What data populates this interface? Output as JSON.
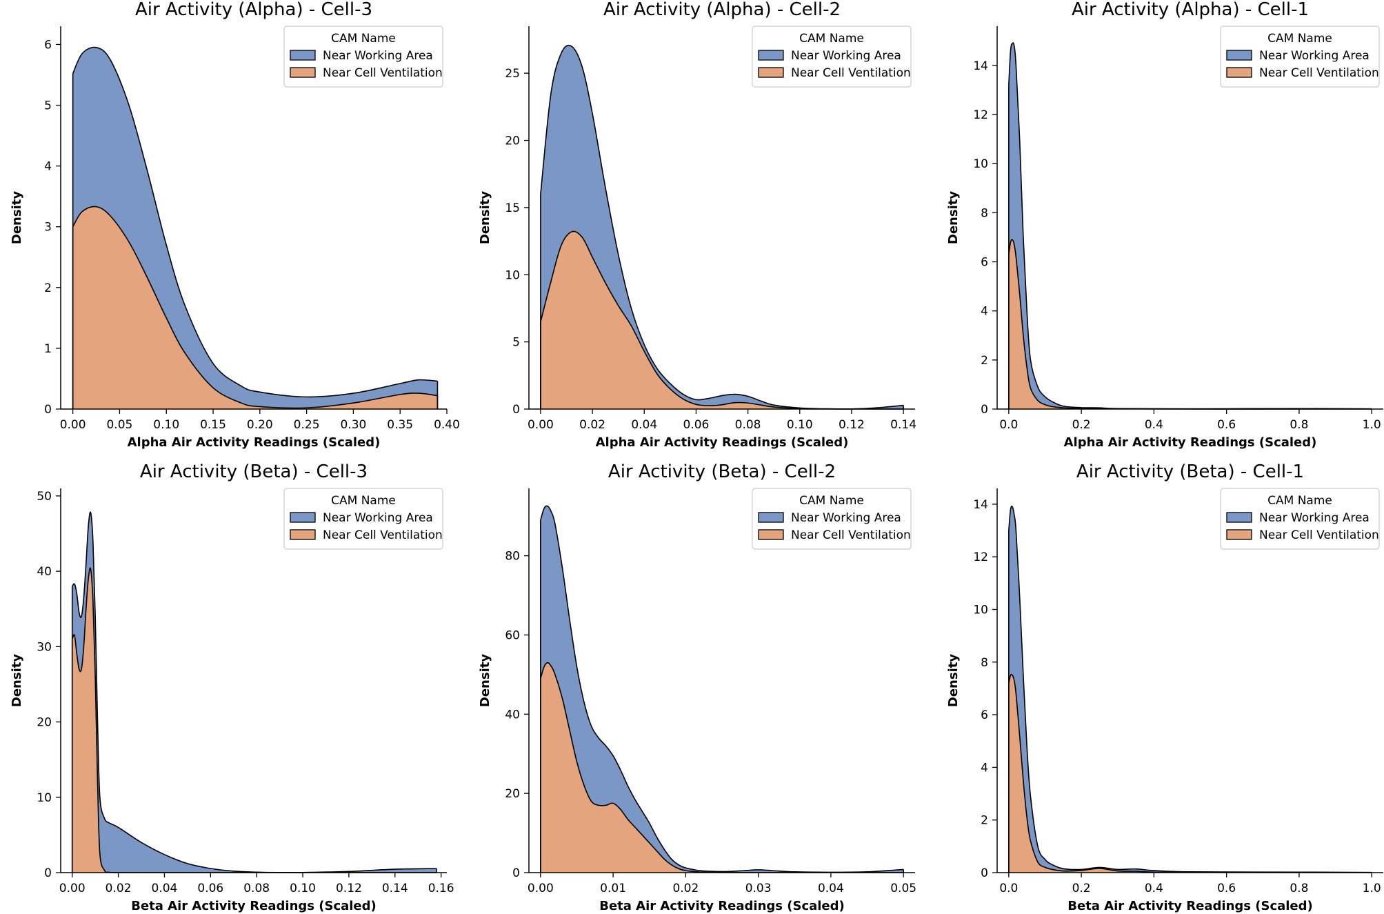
{
  "colors": {
    "near_working_area": "#7b97c5",
    "near_cell_ventilation": "#e4a47d",
    "edge": "#000000"
  },
  "chart_data": [
    {
      "type": "area",
      "title": "Air Activity (Alpha) - Cell-3",
      "xlabel": "Alpha Air Activity Readings (Scaled)",
      "ylabel": "Density",
      "xlim": [
        -0.013,
        0.4
      ],
      "ylim": [
        0,
        6.3
      ],
      "xticks": [
        "0.00",
        "0.05",
        "0.10",
        "0.15",
        "0.20",
        "0.25",
        "0.30",
        "0.35",
        "0.40"
      ],
      "yticks": [
        "0",
        "1",
        "2",
        "3",
        "4",
        "5",
        "6"
      ],
      "legend": {
        "title": "CAM Name",
        "entries": [
          "Near Working Area",
          "Near Cell Ventilation"
        ]
      },
      "series": [
        {
          "name": "Near Working Area",
          "x": [
            0,
            0.01,
            0.025,
            0.04,
            0.06,
            0.08,
            0.1,
            0.12,
            0.15,
            0.18,
            0.2,
            0.25,
            0.3,
            0.35,
            0.37,
            0.39
          ],
          "values": [
            5.52,
            5.85,
            5.95,
            5.75,
            5.0,
            3.9,
            2.7,
            1.7,
            0.75,
            0.38,
            0.28,
            0.2,
            0.26,
            0.42,
            0.48,
            0.46
          ]
        },
        {
          "name": "Near Cell Ventilation",
          "x": [
            0,
            0.01,
            0.025,
            0.04,
            0.06,
            0.08,
            0.1,
            0.12,
            0.15,
            0.18,
            0.2,
            0.25,
            0.3,
            0.35,
            0.37,
            0.39
          ],
          "values": [
            3.0,
            3.25,
            3.33,
            3.18,
            2.75,
            2.15,
            1.5,
            0.92,
            0.35,
            0.1,
            0.04,
            0.02,
            0.1,
            0.24,
            0.26,
            0.22
          ]
        }
      ]
    },
    {
      "type": "area",
      "title": "Air Activity (Alpha) - Cell-2",
      "xlabel": "Alpha Air Activity Readings (Scaled)",
      "ylabel": "Density",
      "xlim": [
        -0.0045,
        0.1445
      ],
      "ylim": [
        0,
        28.5
      ],
      "xticks": [
        "0.00",
        "0.02",
        "0.04",
        "0.06",
        "0.08",
        "0.10",
        "0.12",
        "0.14"
      ],
      "yticks": [
        "0",
        "5",
        "10",
        "15",
        "20",
        "25"
      ],
      "legend": {
        "title": "CAM Name",
        "entries": [
          "Near Working Area",
          "Near Cell Ventilation"
        ]
      },
      "series": [
        {
          "name": "Near Working Area",
          "x": [
            0,
            0.004,
            0.008,
            0.012,
            0.016,
            0.02,
            0.025,
            0.03,
            0.035,
            0.04,
            0.045,
            0.05,
            0.055,
            0.06,
            0.065,
            0.07,
            0.075,
            0.08,
            0.085,
            0.09,
            0.1,
            0.11,
            0.12,
            0.13,
            0.14
          ],
          "values": [
            16,
            23.5,
            26.5,
            27,
            25.5,
            22,
            16.5,
            11.5,
            7.5,
            4.8,
            3.0,
            1.9,
            1.1,
            0.7,
            0.8,
            1.0,
            1.1,
            0.95,
            0.6,
            0.3,
            0.08,
            0.02,
            0.01,
            0.1,
            0.28
          ]
        },
        {
          "name": "Near Cell Ventilation",
          "x": [
            0,
            0.004,
            0.008,
            0.012,
            0.016,
            0.02,
            0.025,
            0.03,
            0.035,
            0.04,
            0.045,
            0.05,
            0.055,
            0.06,
            0.065,
            0.07,
            0.075,
            0.08,
            0.085,
            0.09,
            0.1,
            0.11,
            0.12,
            0.13,
            0.14
          ],
          "values": [
            6.5,
            9.5,
            12.2,
            13.2,
            12.8,
            11.3,
            9.4,
            7.7,
            6.2,
            4.3,
            2.6,
            1.5,
            0.75,
            0.35,
            0.25,
            0.32,
            0.48,
            0.45,
            0.3,
            0.15,
            0.03,
            0.01,
            0,
            0,
            0
          ]
        }
      ]
    },
    {
      "type": "area",
      "title": "Air Activity (Alpha) - Cell-1",
      "xlabel": "Alpha Air Activity Readings (Scaled)",
      "ylabel": "Density",
      "xlim": [
        -0.032,
        1.032
      ],
      "ylim": [
        0,
        15.6
      ],
      "xticks": [
        "0.0",
        "0.2",
        "0.4",
        "0.6",
        "0.8",
        "1.0"
      ],
      "yticks": [
        "0",
        "2",
        "4",
        "6",
        "8",
        "10",
        "12",
        "14"
      ],
      "legend": {
        "title": "CAM Name",
        "entries": [
          "Near Working Area",
          "Near Cell Ventilation"
        ]
      },
      "series": [
        {
          "name": "Near Working Area",
          "x": [
            0,
            0.005,
            0.01,
            0.015,
            0.02,
            0.03,
            0.04,
            0.05,
            0.06,
            0.08,
            0.1,
            0.12,
            0.15,
            0.2,
            0.25,
            0.3,
            0.5,
            0.8,
            1.0
          ],
          "values": [
            13.2,
            14.6,
            14.9,
            14.8,
            14.0,
            11.0,
            7.0,
            4.0,
            2.0,
            0.9,
            0.5,
            0.3,
            0.12,
            0.06,
            0.05,
            0.02,
            0.01,
            0.02,
            0.01
          ]
        },
        {
          "name": "Near Cell Ventilation",
          "x": [
            0,
            0.005,
            0.01,
            0.015,
            0.02,
            0.03,
            0.04,
            0.05,
            0.06,
            0.08,
            0.1,
            0.12,
            0.15,
            0.2,
            0.25,
            0.3,
            0.5,
            0.8,
            1.0
          ],
          "values": [
            6.3,
            6.8,
            6.9,
            6.7,
            6.2,
            4.7,
            3.0,
            1.7,
            0.85,
            0.35,
            0.18,
            0.1,
            0.05,
            0.02,
            0.02,
            0.01,
            0,
            0,
            0
          ]
        }
      ]
    },
    {
      "type": "area",
      "title": "Air Activity (Beta) - Cell-3",
      "xlabel": "Beta Air Activity Readings (Scaled)",
      "ylabel": "Density",
      "xlim": [
        -0.005,
        0.1625
      ],
      "ylim": [
        0,
        51
      ],
      "xticks": [
        "0.00",
        "0.02",
        "0.04",
        "0.06",
        "0.08",
        "0.10",
        "0.12",
        "0.14",
        "0.16"
      ],
      "yticks": [
        "0",
        "10",
        "20",
        "30",
        "40",
        "50"
      ],
      "legend": {
        "title": "CAM Name",
        "entries": [
          "Near Working Area",
          "Near Cell Ventilation"
        ]
      },
      "series": [
        {
          "name": "Near Working Area",
          "x": [
            0,
            0.001,
            0.002,
            0.003,
            0.004,
            0.005,
            0.006,
            0.007,
            0.008,
            0.009,
            0.01,
            0.011,
            0.012,
            0.014,
            0.016,
            0.02,
            0.03,
            0.04,
            0.05,
            0.06,
            0.07,
            0.08,
            0.09,
            0.1,
            0.12,
            0.14,
            0.158
          ],
          "values": [
            38,
            38.3,
            37,
            34.5,
            34,
            36.5,
            41,
            46,
            47.8,
            44,
            34,
            20,
            10,
            7.2,
            6.6,
            6,
            4,
            2.4,
            1.2,
            0.55,
            0.2,
            0.06,
            0.02,
            0.02,
            0.15,
            0.45,
            0.55
          ]
        },
        {
          "name": "Near Cell Ventilation",
          "x": [
            0,
            0.001,
            0.002,
            0.003,
            0.004,
            0.005,
            0.006,
            0.007,
            0.008,
            0.009,
            0.01,
            0.011,
            0.012,
            0.014,
            0.016,
            0.02,
            0.03,
            0.04,
            0.05,
            0.06,
            0.07,
            0.08,
            0.09,
            0.1,
            0.12,
            0.14,
            0.158
          ],
          "values": [
            31,
            31.5,
            29,
            27,
            27,
            30,
            35,
            39,
            40.3,
            36,
            26,
            12,
            2.5,
            0.3,
            0.05,
            0,
            0,
            0,
            0,
            0,
            0,
            0,
            0,
            0,
            0,
            0,
            0
          ]
        }
      ]
    },
    {
      "type": "area",
      "title": "Air Activity (Beta) - Cell-2",
      "xlabel": "Beta Air Activity Readings (Scaled)",
      "ylabel": "Density",
      "xlim": [
        -0.0016,
        0.0516
      ],
      "ylim": [
        0,
        97
      ],
      "xticks": [
        "0.00",
        "0.01",
        "0.02",
        "0.03",
        "0.04",
        "0.05"
      ],
      "yticks": [
        "0",
        "20",
        "40",
        "60",
        "80"
      ],
      "legend": {
        "title": "CAM Name",
        "entries": [
          "Near Working Area",
          "Near Cell Ventilation"
        ]
      },
      "series": [
        {
          "name": "Near Working Area",
          "x": [
            0,
            0.0005,
            0.001,
            0.0015,
            0.002,
            0.003,
            0.004,
            0.005,
            0.006,
            0.007,
            0.008,
            0.009,
            0.01,
            0.011,
            0.012,
            0.013,
            0.014,
            0.015,
            0.016,
            0.017,
            0.018,
            0.019,
            0.02,
            0.022,
            0.024,
            0.026,
            0.028,
            0.03,
            0.032,
            0.035,
            0.04,
            0.045,
            0.05
          ],
          "values": [
            89,
            92,
            92.5,
            91,
            88,
            77,
            64,
            52,
            43,
            37,
            34,
            32,
            29.5,
            26,
            22,
            18.5,
            15.5,
            12.5,
            9,
            6,
            3.5,
            2,
            1.2,
            0.5,
            0.3,
            0.3,
            0.5,
            0.7,
            0.5,
            0.2,
            0.1,
            0.2,
            0.8
          ]
        },
        {
          "name": "Near Cell Ventilation",
          "x": [
            0,
            0.0005,
            0.001,
            0.0015,
            0.002,
            0.003,
            0.004,
            0.005,
            0.006,
            0.007,
            0.008,
            0.009,
            0.01,
            0.011,
            0.012,
            0.013,
            0.014,
            0.015,
            0.016,
            0.017,
            0.018,
            0.019,
            0.02,
            0.022,
            0.024,
            0.026,
            0.028,
            0.03,
            0.032,
            0.035,
            0.04,
            0.045,
            0.05
          ],
          "values": [
            49,
            52,
            53,
            52,
            50,
            44,
            36,
            28,
            22,
            18,
            17,
            17,
            17.5,
            16,
            13.5,
            11.5,
            9.5,
            7.5,
            5.5,
            3.5,
            2,
            1,
            0.5,
            0.15,
            0.05,
            0,
            0,
            0,
            0,
            0,
            0,
            0,
            0
          ]
        }
      ]
    },
    {
      "type": "area",
      "title": "Air Activity (Beta) - Cell-1",
      "xlabel": "Beta Air Activity Readings (Scaled)",
      "ylabel": "Density",
      "xlim": [
        -0.032,
        1.032
      ],
      "ylim": [
        0,
        14.6
      ],
      "xticks": [
        "0.0",
        "0.2",
        "0.4",
        "0.6",
        "0.8",
        "1.0"
      ],
      "yticks": [
        "0",
        "2",
        "4",
        "6",
        "8",
        "10",
        "12",
        "14"
      ],
      "legend": {
        "title": "CAM Name",
        "entries": [
          "Near Working Area",
          "Near Cell Ventilation"
        ]
      },
      "series": [
        {
          "name": "Near Working Area",
          "x": [
            0,
            0.005,
            0.01,
            0.015,
            0.02,
            0.03,
            0.04,
            0.05,
            0.06,
            0.08,
            0.1,
            0.12,
            0.15,
            0.2,
            0.25,
            0.3,
            0.35,
            0.4,
            0.5,
            0.8,
            1.0
          ],
          "values": [
            13.0,
            13.8,
            13.9,
            13.6,
            13.0,
            10.5,
            7.5,
            4.8,
            2.9,
            1.0,
            0.5,
            0.3,
            0.15,
            0.12,
            0.2,
            0.12,
            0.14,
            0.08,
            0.03,
            0.02,
            0.01
          ]
        },
        {
          "name": "Near Cell Ventilation",
          "x": [
            0,
            0.005,
            0.01,
            0.015,
            0.02,
            0.03,
            0.04,
            0.05,
            0.06,
            0.08,
            0.1,
            0.12,
            0.15,
            0.2,
            0.25,
            0.3,
            0.35,
            0.4,
            0.5,
            0.8,
            1.0
          ],
          "values": [
            7.2,
            7.5,
            7.5,
            7.3,
            6.8,
            5.2,
            3.5,
            2.1,
            1.2,
            0.4,
            0.2,
            0.12,
            0.06,
            0.08,
            0.16,
            0.06,
            0.05,
            0.02,
            0.01,
            0,
            0
          ]
        }
      ]
    }
  ]
}
